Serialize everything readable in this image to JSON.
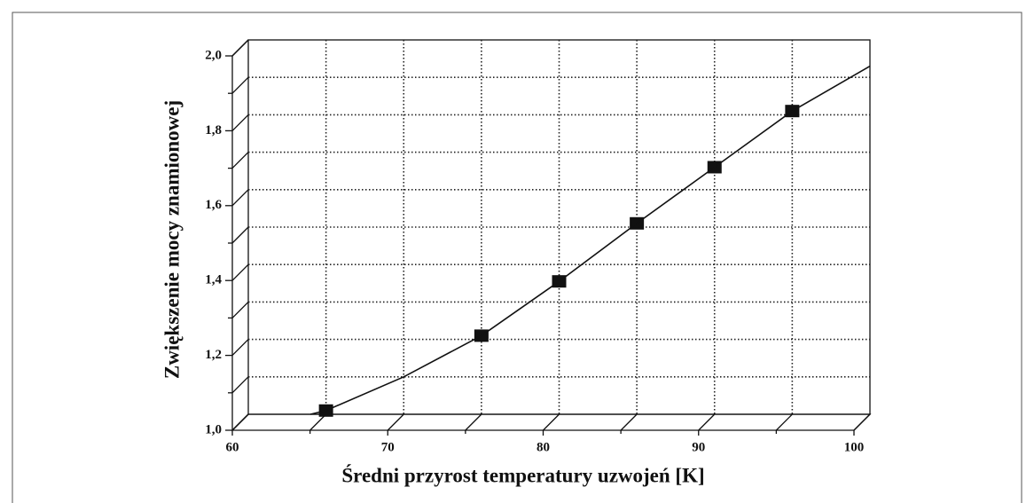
{
  "chart_data": {
    "type": "scatter",
    "xlabel": "Średni przyrost temperatury uzwojeń [K]",
    "ylabel": "Zwiększenie mocy znamionowej",
    "xlim": [
      60,
      100
    ],
    "xticks": [
      60,
      70,
      80,
      90,
      100
    ],
    "xticks_minor": [
      65,
      75,
      85,
      95
    ],
    "ylim": [
      1.0,
      2.0
    ],
    "yticks": [
      {
        "value": 1.0,
        "label": "1,0"
      },
      {
        "value": 1.2,
        "label": "1,2"
      },
      {
        "value": 1.4,
        "label": "1,4"
      },
      {
        "value": 1.6,
        "label": "1,6"
      },
      {
        "value": 1.8,
        "label": "1,8"
      },
      {
        "value": 2.0,
        "label": "2,0"
      }
    ],
    "yticks_minor": [
      1.1,
      1.3,
      1.5,
      1.7,
      1.9
    ],
    "grid": true,
    "series": [
      {
        "color": "#111111",
        "marker": "square",
        "x": [
          65,
          75,
          80,
          85,
          90,
          95
        ],
        "values": [
          1.01,
          1.21,
          1.355,
          1.51,
          1.66,
          1.81
        ]
      },
      {
        "color": "#111111",
        "marker": "line",
        "x": [
          64,
          65,
          70,
          75,
          80,
          85,
          90,
          95,
          100
        ],
        "values": [
          1.0,
          1.01,
          1.1,
          1.21,
          1.355,
          1.51,
          1.66,
          1.81,
          1.93
        ]
      }
    ]
  }
}
